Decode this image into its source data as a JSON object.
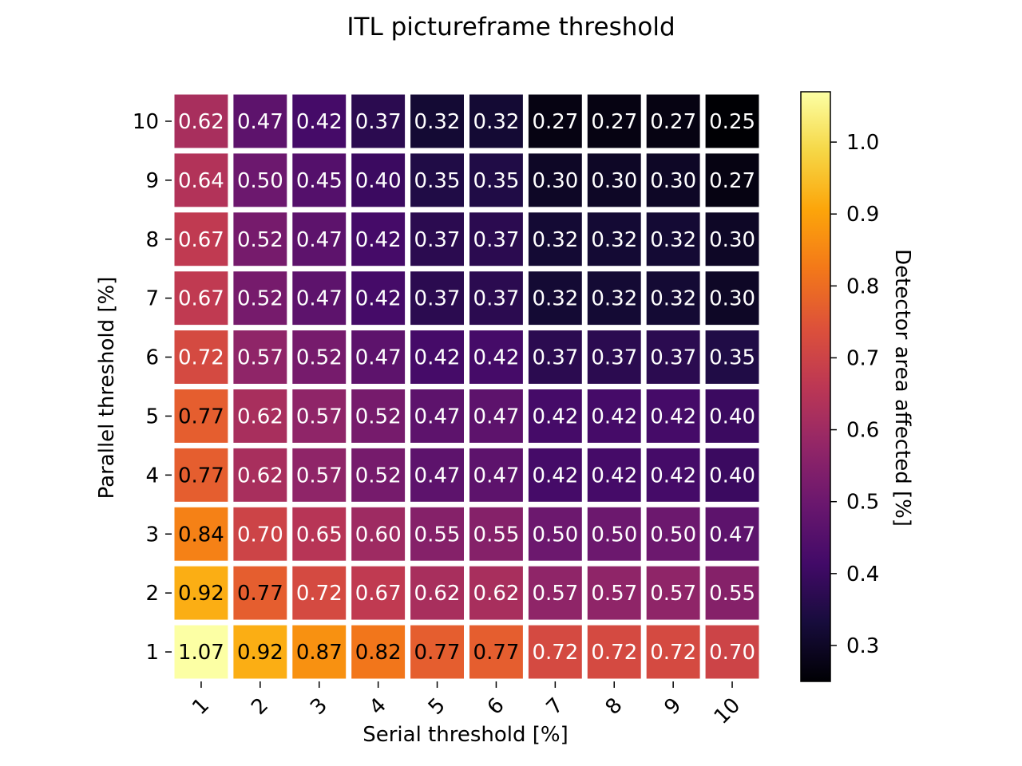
{
  "chart_data": {
    "type": "heatmap",
    "title": "ITL pictureframe threshold",
    "xlabel": "Serial threshold [%]",
    "ylabel": "Parallel threshold [%]",
    "x_categories": [
      "1",
      "2",
      "3",
      "4",
      "5",
      "6",
      "7",
      "8",
      "9",
      "10"
    ],
    "y_categories": [
      "10",
      "9",
      "8",
      "7",
      "6",
      "5",
      "4",
      "3",
      "2",
      "1"
    ],
    "values": [
      [
        0.62,
        0.47,
        0.42,
        0.37,
        0.32,
        0.32,
        0.27,
        0.27,
        0.27,
        0.25
      ],
      [
        0.64,
        0.5,
        0.45,
        0.4,
        0.35,
        0.35,
        0.3,
        0.3,
        0.3,
        0.27
      ],
      [
        0.67,
        0.52,
        0.47,
        0.42,
        0.37,
        0.37,
        0.32,
        0.32,
        0.32,
        0.3
      ],
      [
        0.67,
        0.52,
        0.47,
        0.42,
        0.37,
        0.37,
        0.32,
        0.32,
        0.32,
        0.3
      ],
      [
        0.72,
        0.57,
        0.52,
        0.47,
        0.42,
        0.42,
        0.37,
        0.37,
        0.37,
        0.35
      ],
      [
        0.77,
        0.62,
        0.57,
        0.52,
        0.47,
        0.47,
        0.42,
        0.42,
        0.42,
        0.4
      ],
      [
        0.77,
        0.62,
        0.57,
        0.52,
        0.47,
        0.47,
        0.42,
        0.42,
        0.42,
        0.4
      ],
      [
        0.84,
        0.7,
        0.65,
        0.6,
        0.55,
        0.55,
        0.5,
        0.5,
        0.5,
        0.47
      ],
      [
        0.92,
        0.77,
        0.72,
        0.67,
        0.62,
        0.62,
        0.57,
        0.57,
        0.57,
        0.55
      ],
      [
        1.07,
        0.92,
        0.87,
        0.82,
        0.77,
        0.77,
        0.72,
        0.72,
        0.72,
        0.7
      ]
    ],
    "colorbar": {
      "label": "Detector area affected [%]",
      "range": [
        0.25,
        1.07
      ],
      "ticks": [
        "0.3",
        "0.4",
        "0.5",
        "0.6",
        "0.7",
        "0.8",
        "0.9",
        "1.0"
      ],
      "colormap": "inferno"
    },
    "grid": false,
    "annotations": "cell values printed in each cell"
  }
}
